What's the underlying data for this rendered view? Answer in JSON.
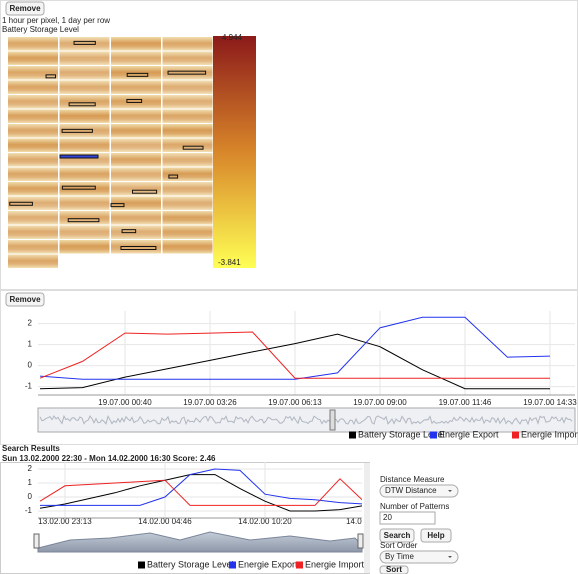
{
  "heatmap": {
    "button": "Remove",
    "subtitle": "1 hour per pixel, 1 day per row",
    "title": "Battery Storage Level",
    "colorbar_max": 4.944,
    "colorbar_min": -3.841
  },
  "chart_panel": {
    "button": "Remove"
  },
  "search": {
    "title": "Search Results",
    "result": "Sun 13.02.2000 22:30 - Mon 14.02.2000 16:30 Score: 2.46"
  },
  "controls": {
    "distance_label": "Distance Measure",
    "distance_value": "DTW Distance",
    "patterns_label": "Number of Patterns",
    "patterns_value": "20",
    "search_button": "Search",
    "help_button": "Help",
    "sort_label": "Sort Order",
    "sort_value": "By Time",
    "sort_button": "Sort"
  },
  "chart_data": [
    {
      "type": "line",
      "categories": [
        null,
        null,
        "19.07.00 00:40",
        null,
        "19.07.00 03:26",
        null,
        "19.07.00 06:13",
        null,
        "19.07.00 09:00",
        null,
        "19.07.00 11:46",
        null,
        "19.07.00 14:33"
      ],
      "series": [
        {
          "name": "Battery Storage Level",
          "color": "#000000",
          "values": [
            -1.1,
            -1.05,
            -0.55,
            -0.15,
            0.25,
            0.65,
            1.05,
            1.5,
            0.9,
            -0.2,
            -1.1,
            -1.1,
            -1.1
          ]
        },
        {
          "name": "Energie Export",
          "color": "#2233ee",
          "values": [
            -0.5,
            -0.65,
            -0.65,
            -0.65,
            -0.65,
            -0.65,
            -0.65,
            -0.35,
            1.8,
            2.3,
            2.3,
            0.4,
            0.45
          ]
        },
        {
          "name": "Energie Import",
          "color": "#ee2222",
          "values": [
            -0.6,
            0.2,
            1.55,
            1.5,
            1.55,
            1.6,
            -0.6,
            -0.6,
            -0.6,
            -0.6,
            -0.6,
            -0.6,
            -0.6
          ]
        }
      ],
      "ylim": [
        -1.4,
        2.6
      ],
      "yticks": [
        -1,
        0,
        1,
        2
      ],
      "grid": true
    },
    {
      "type": "line",
      "categories": [
        null,
        "13.02.00 23:13",
        null,
        null,
        null,
        "14.02.00 04:46",
        null,
        null,
        null,
        "14.02.00 10:20",
        null,
        null,
        null,
        "14.02.00 1"
      ],
      "series": [
        {
          "name": "Battery Storage Level",
          "color": "#000000",
          "values": [
            -0.8,
            -0.5,
            -0.1,
            0.3,
            0.8,
            1.2,
            1.6,
            1.6,
            0.6,
            -0.3,
            -1,
            -1,
            -0.9,
            -0.6
          ]
        },
        {
          "name": "Energie Export",
          "color": "#2233ee",
          "values": [
            -0.6,
            -0.6,
            -0.6,
            -0.6,
            -0.6,
            0.0,
            1.6,
            2.0,
            1.9,
            0.2,
            -0.1,
            -0.2,
            -0.4,
            -0.5
          ]
        },
        {
          "name": "Energie Import",
          "color": "#ee2222",
          "values": [
            -0.3,
            0.8,
            0.9,
            1.0,
            1.1,
            1.2,
            -0.6,
            -0.6,
            -0.6,
            -0.6,
            -0.6,
            -0.6,
            1.3,
            -0.4
          ]
        }
      ],
      "ylim": [
        -1.5,
        2.5
      ],
      "yticks": [
        -1,
        0,
        1,
        2
      ],
      "grid": true
    }
  ]
}
